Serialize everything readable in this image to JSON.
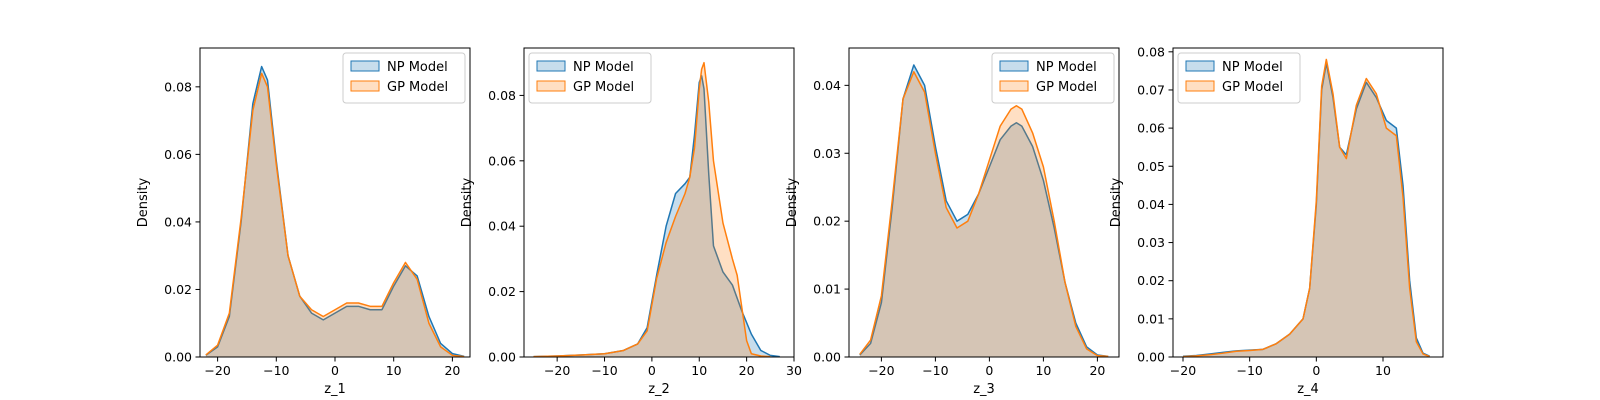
{
  "legend_entries": [
    "NP Model",
    "GP Model"
  ],
  "chart_data": [
    {
      "type": "area",
      "xlabel": "z_1",
      "ylabel": "Density",
      "xlim": [
        -23,
        23
      ],
      "ylim": [
        0,
        0.0915
      ],
      "xticks": [
        -20,
        -10,
        0,
        10,
        20
      ],
      "yticks": [
        0.0,
        0.02,
        0.04,
        0.06,
        0.08
      ],
      "ytick_decimals": 2,
      "legend_position": "top-right",
      "series": [
        {
          "name": "NP Model",
          "color": "#1f77b4",
          "x": [
            -22,
            -20,
            -18,
            -16,
            -14,
            -12.5,
            -11.5,
            -10,
            -8,
            -6,
            -4,
            -2,
            0,
            2,
            4,
            6,
            8,
            10,
            12,
            14,
            16,
            18,
            20,
            22
          ],
          "y": [
            0.0005,
            0.003,
            0.012,
            0.04,
            0.075,
            0.086,
            0.082,
            0.058,
            0.03,
            0.018,
            0.013,
            0.011,
            0.013,
            0.015,
            0.015,
            0.014,
            0.014,
            0.021,
            0.027,
            0.024,
            0.012,
            0.004,
            0.001,
            0.0002
          ]
        },
        {
          "name": "GP Model",
          "color": "#ff7f0e",
          "x": [
            -22,
            -20,
            -18,
            -16,
            -14,
            -12.5,
            -11.5,
            -10,
            -8,
            -6,
            -4,
            -2,
            0,
            2,
            4,
            6,
            8,
            10,
            12,
            14,
            16,
            18,
            20,
            22
          ],
          "y": [
            0.0006,
            0.0035,
            0.013,
            0.041,
            0.073,
            0.084,
            0.08,
            0.057,
            0.03,
            0.018,
            0.014,
            0.012,
            0.014,
            0.016,
            0.016,
            0.015,
            0.015,
            0.022,
            0.028,
            0.023,
            0.01,
            0.003,
            0.0005,
            0.0001
          ]
        }
      ]
    },
    {
      "type": "area",
      "xlabel": "z_2",
      "ylabel": "Density",
      "xlim": [
        -27,
        30
      ],
      "ylim": [
        0,
        0.0945
      ],
      "xticks": [
        -20,
        -10,
        0,
        10,
        20,
        30
      ],
      "yticks": [
        0.0,
        0.02,
        0.04,
        0.06,
        0.08
      ],
      "ytick_decimals": 2,
      "legend_position": "top-left",
      "series": [
        {
          "name": "NP Model",
          "color": "#1f77b4",
          "x": [
            -25,
            -20,
            -15,
            -10,
            -6,
            -3,
            -1,
            1,
            3,
            5,
            7,
            8,
            9,
            10,
            10.5,
            11,
            12,
            13,
            15,
            17,
            19,
            21,
            23,
            25,
            27
          ],
          "y": [
            0.0001,
            0.0003,
            0.0006,
            0.001,
            0.002,
            0.004,
            0.009,
            0.025,
            0.04,
            0.05,
            0.053,
            0.055,
            0.068,
            0.084,
            0.086,
            0.082,
            0.056,
            0.034,
            0.026,
            0.022,
            0.014,
            0.007,
            0.002,
            0.0005,
            0.0001
          ]
        },
        {
          "name": "GP Model",
          "color": "#ff7f0e",
          "x": [
            -25,
            -20,
            -15,
            -10,
            -6,
            -3,
            -1,
            1,
            3,
            5,
            7,
            8,
            9,
            10,
            10.5,
            11,
            12,
            13,
            15,
            17,
            18,
            19,
            20,
            21,
            23,
            25
          ],
          "y": [
            0.0001,
            0.0003,
            0.0006,
            0.001,
            0.002,
            0.004,
            0.008,
            0.024,
            0.035,
            0.043,
            0.05,
            0.055,
            0.064,
            0.082,
            0.088,
            0.09,
            0.078,
            0.06,
            0.041,
            0.03,
            0.025,
            0.015,
            0.005,
            0.001,
            0.0003,
            0.0001
          ]
        }
      ]
    },
    {
      "type": "area",
      "xlabel": "z_3",
      "ylabel": "Density",
      "xlim": [
        -26,
        24
      ],
      "ylim": [
        0,
        0.0455
      ],
      "xticks": [
        -20,
        -10,
        0,
        10,
        20
      ],
      "yticks": [
        0.0,
        0.01,
        0.02,
        0.03,
        0.04
      ],
      "ytick_decimals": 2,
      "legend_position": "top-right",
      "series": [
        {
          "name": "NP Model",
          "color": "#1f77b4",
          "x": [
            -24,
            -22,
            -20,
            -18,
            -16,
            -14,
            -12,
            -10,
            -8,
            -6,
            -4,
            -2,
            0,
            2,
            4,
            5,
            6,
            8,
            10,
            12,
            14,
            16,
            18,
            20,
            22
          ],
          "y": [
            0.0003,
            0.002,
            0.008,
            0.022,
            0.038,
            0.043,
            0.04,
            0.031,
            0.023,
            0.02,
            0.021,
            0.024,
            0.028,
            0.032,
            0.034,
            0.0345,
            0.034,
            0.031,
            0.026,
            0.019,
            0.011,
            0.005,
            0.0015,
            0.0003,
            0.0001
          ]
        },
        {
          "name": "GP Model",
          "color": "#ff7f0e",
          "x": [
            -24,
            -22,
            -20,
            -18,
            -16,
            -14,
            -12,
            -10,
            -8,
            -6,
            -4,
            -2,
            0,
            2,
            4,
            5,
            6,
            8,
            10,
            12,
            14,
            16,
            18,
            20,
            22
          ],
          "y": [
            0.0004,
            0.0025,
            0.009,
            0.023,
            0.038,
            0.042,
            0.039,
            0.03,
            0.022,
            0.019,
            0.02,
            0.024,
            0.029,
            0.034,
            0.0365,
            0.037,
            0.0365,
            0.033,
            0.028,
            0.02,
            0.011,
            0.0045,
            0.0012,
            0.0002,
            0.0001
          ]
        }
      ]
    },
    {
      "type": "area",
      "xlabel": "z_4",
      "ylabel": "Density",
      "xlim": [
        -21.5,
        19
      ],
      "ylim": [
        0,
        0.081
      ],
      "xticks": [
        -20,
        -10,
        0,
        10
      ],
      "yticks": [
        0.0,
        0.01,
        0.02,
        0.03,
        0.04,
        0.05,
        0.06,
        0.07,
        0.08
      ],
      "ytick_decimals": 2,
      "legend_position": "top-left",
      "series": [
        {
          "name": "NP Model",
          "color": "#1f77b4",
          "x": [
            -20,
            -18,
            -16,
            -14,
            -12,
            -10,
            -8,
            -6,
            -4,
            -2,
            -1,
            0,
            0.8,
            1.5,
            2.5,
            3.5,
            4.5,
            6,
            7.5,
            9,
            10.5,
            12,
            13,
            14,
            15,
            16,
            17
          ],
          "y": [
            0.0002,
            0.0004,
            0.0008,
            0.0012,
            0.0016,
            0.0018,
            0.002,
            0.0035,
            0.006,
            0.01,
            0.018,
            0.04,
            0.07,
            0.077,
            0.068,
            0.055,
            0.053,
            0.065,
            0.072,
            0.068,
            0.062,
            0.06,
            0.045,
            0.02,
            0.005,
            0.001,
            0.0002
          ]
        },
        {
          "name": "GP Model",
          "color": "#ff7f0e",
          "x": [
            -20,
            -18,
            -16,
            -14,
            -12,
            -10,
            -8,
            -6,
            -4,
            -2,
            -1,
            0,
            0.8,
            1.5,
            2.5,
            3.5,
            4.5,
            6,
            7.5,
            9,
            10.5,
            12,
            13,
            14,
            15,
            16,
            17
          ],
          "y": [
            0.0001,
            0.0003,
            0.0006,
            0.001,
            0.0015,
            0.0017,
            0.002,
            0.0035,
            0.006,
            0.01,
            0.018,
            0.041,
            0.071,
            0.078,
            0.069,
            0.055,
            0.052,
            0.066,
            0.073,
            0.069,
            0.06,
            0.058,
            0.042,
            0.018,
            0.004,
            0.0008,
            0.0001
          ]
        }
      ]
    }
  ]
}
